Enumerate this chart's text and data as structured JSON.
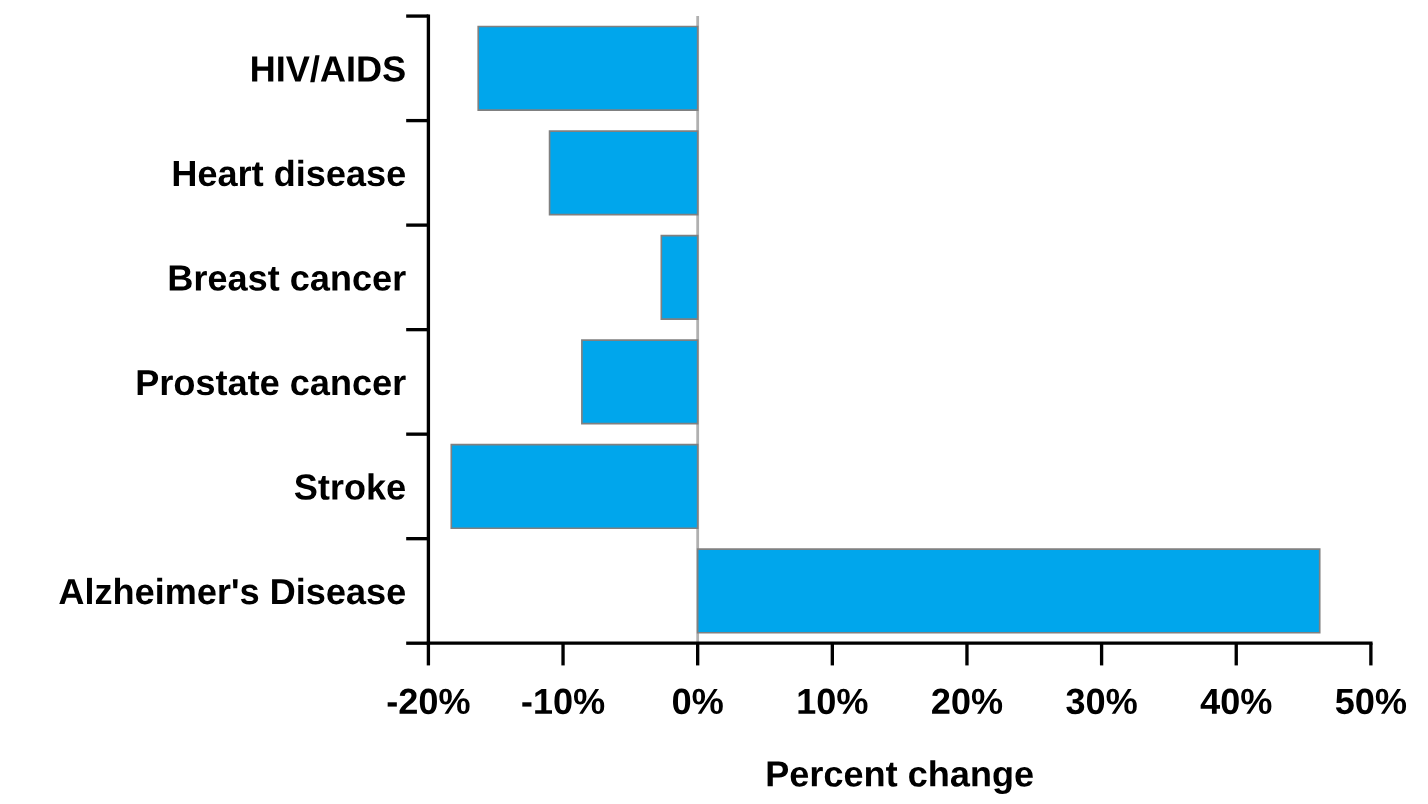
{
  "chart_data": {
    "type": "bar",
    "orientation": "horizontal",
    "xlabel": "Percent change",
    "categories": [
      "HIV/AIDS",
      "Heart disease",
      "Breast cancer",
      "Prostate cancer",
      "Stroke",
      "Alzheimer's Disease"
    ],
    "values": [
      -16.3,
      -11.0,
      -2.7,
      -8.6,
      -18.3,
      46.2
    ],
    "color": "#00a6ec",
    "xlim": [
      -20,
      50
    ],
    "xticks": [
      {
        "value": -20,
        "label": "-20%"
      },
      {
        "value": -10,
        "label": "-10%"
      },
      {
        "value": 0,
        "label": "0%"
      },
      {
        "value": 10,
        "label": "10%"
      },
      {
        "value": 20,
        "label": "20%"
      },
      {
        "value": 30,
        "label": "30%"
      },
      {
        "value": 40,
        "label": "40%"
      },
      {
        "value": 50,
        "label": "50%"
      }
    ],
    "ref_lines": [
      {
        "axis": "x",
        "value": 0,
        "color": "#b0b0b0"
      }
    ],
    "grid": false,
    "legend": false
  }
}
